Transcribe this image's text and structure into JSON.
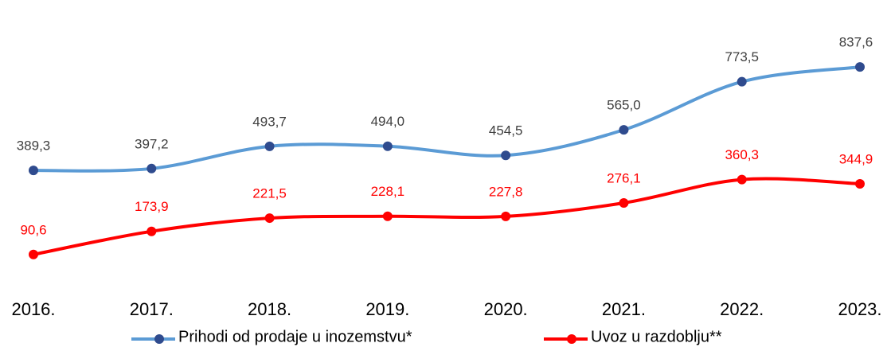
{
  "chart_data": {
    "type": "line",
    "categories": [
      "2016.",
      "2017.",
      "2018.",
      "2019.",
      "2020.",
      "2021.",
      "2022.",
      "2023."
    ],
    "series": [
      {
        "name": "Prihodi od prodaje u inozemstvu*",
        "color": "#5b9bd5",
        "marker_color": "#2f4b8e",
        "label_color": "#404040",
        "values": [
          389.3,
          397.2,
          493.7,
          494.0,
          454.5,
          565.0,
          773.5,
          837.6
        ],
        "value_labels": [
          "389,3",
          "397,2",
          "493,7",
          "494,0",
          "454,5",
          "565,0",
          "773,5",
          "837,6"
        ]
      },
      {
        "name": "Uvoz u razdoblju**",
        "color": "#ff0000",
        "marker_color": "#ff0000",
        "label_color": "#ff0000",
        "axis": "y2",
        "values": [
          90.6,
          173.9,
          221.5,
          228.1,
          227.8,
          276.1,
          360.3,
          344.9
        ],
        "value_labels": [
          "90,6",
          "173,9",
          "221,5",
          "228,1",
          "227,8",
          "276,1",
          "360,3",
          "344,9"
        ]
      }
    ],
    "ylim": [
      0,
      1000
    ],
    "y2lim": [
      70,
      900
    ],
    "legend": "bottom"
  }
}
